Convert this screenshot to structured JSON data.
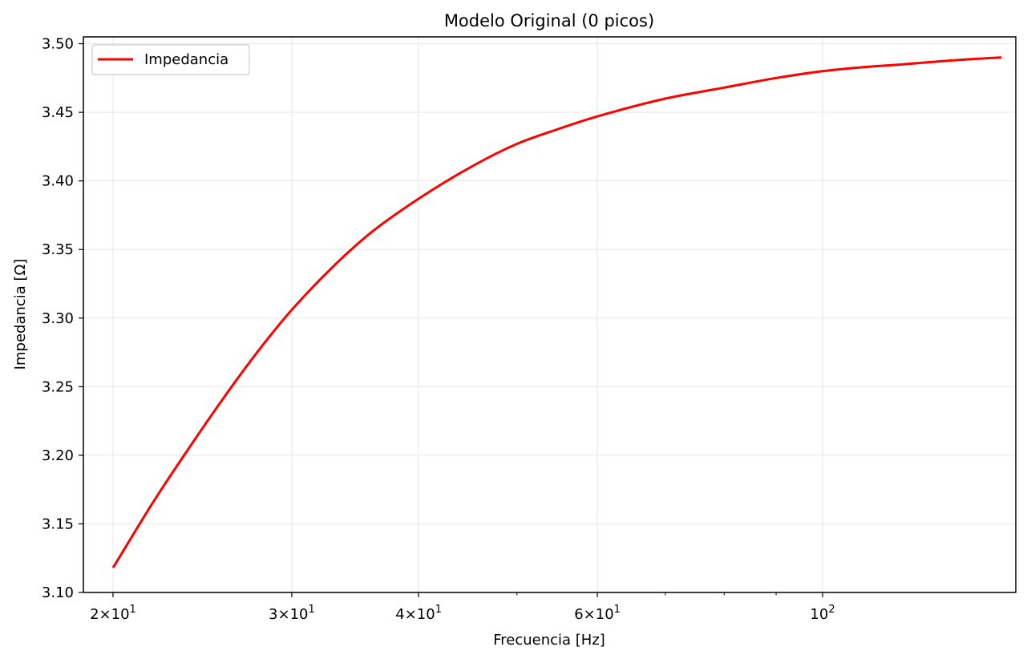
{
  "chart_data": {
    "type": "line",
    "title": "Modelo Original (0 picos)",
    "xlabel": "Frecuencia [Hz]",
    "ylabel": "Impedancia [Ω]",
    "x_scale": "log",
    "xlim": [
      18.7,
      155
    ],
    "ylim": [
      3.1,
      3.505
    ],
    "grid": true,
    "legend_position": "top-left",
    "x_ticks": [
      {
        "value": 20,
        "mantissa": "2",
        "base": "10",
        "exp": "1"
      },
      {
        "value": 30,
        "mantissa": "3",
        "base": "10",
        "exp": "1"
      },
      {
        "value": 40,
        "mantissa": "4",
        "base": "10",
        "exp": "1"
      },
      {
        "value": 60,
        "mantissa": "6",
        "base": "10",
        "exp": "1"
      },
      {
        "value": 100,
        "mantissa": "",
        "base": "10",
        "exp": "2"
      }
    ],
    "x_minor_ticks": [
      50,
      70,
      80,
      90
    ],
    "y_ticks": [
      3.1,
      3.15,
      3.2,
      3.25,
      3.3,
      3.35,
      3.4,
      3.45,
      3.5
    ],
    "y_tick_labels": [
      "3.10",
      "3.15",
      "3.20",
      "3.25",
      "3.30",
      "3.35",
      "3.40",
      "3.45",
      "3.50"
    ],
    "series": [
      {
        "name": "Impedancia",
        "color": "#ff0000",
        "x": [
          20,
          22,
          24,
          26,
          28,
          30,
          33,
          36,
          40,
          45,
          50,
          55,
          60,
          70,
          80,
          90,
          100,
          110,
          120,
          135,
          150
        ],
        "y": [
          3.118,
          3.168,
          3.21,
          3.247,
          3.279,
          3.306,
          3.338,
          3.363,
          3.387,
          3.41,
          3.427,
          3.438,
          3.447,
          3.46,
          3.468,
          3.475,
          3.48,
          3.483,
          3.485,
          3.488,
          3.49
        ]
      }
    ]
  },
  "colors": {
    "series_line": "#ff0000",
    "grid": "#e6e6e6",
    "axes": "#000000",
    "legend_border": "#cccccc"
  }
}
